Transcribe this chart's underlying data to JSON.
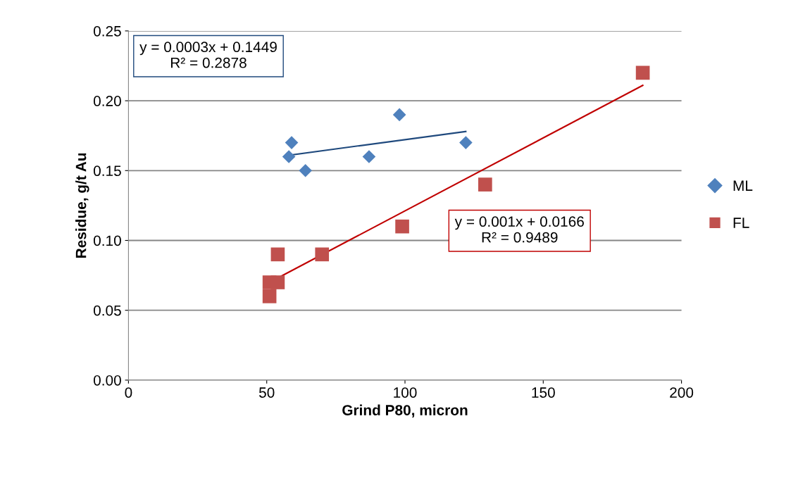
{
  "chart_data": {
    "type": "scatter",
    "xlabel": "Grind P80, micron",
    "ylabel": "Residue, g/t Au",
    "xlim": [
      0,
      200
    ],
    "xticks": [
      0,
      50,
      100,
      150,
      200
    ],
    "ylim": [
      0,
      0.25
    ],
    "yticks": [
      {
        "value": 0,
        "label": "0.00"
      },
      {
        "value": 0.05,
        "label": "0.05"
      },
      {
        "value": 0.1,
        "label": "0.10"
      },
      {
        "value": 0.15,
        "label": "0.15"
      },
      {
        "value": 0.2,
        "label": "0.20"
      },
      {
        "value": 0.25,
        "label": "0.25"
      }
    ],
    "grid": "y",
    "legend": "right",
    "series": [
      {
        "name": "ML",
        "marker": "diamond",
        "color": "#4f81bd",
        "x": [
          58,
          59,
          64,
          87,
          98,
          122
        ],
        "values": [
          0.16,
          0.17,
          0.15,
          0.16,
          0.19,
          0.17
        ]
      },
      {
        "name": "FL",
        "marker": "square",
        "color": "#c0504d",
        "x": [
          51,
          51,
          54,
          54,
          70,
          99,
          129,
          186
        ],
        "values": [
          0.07,
          0.06,
          0.07,
          0.09,
          0.09,
          0.11,
          0.14,
          0.22
        ]
      },
      {
        "type": "line",
        "color": "#1f497d",
        "x": [
          58,
          122
        ],
        "values": [
          0.161,
          0.178
        ]
      },
      {
        "type": "line",
        "color": "#c00000",
        "x": [
          51,
          186
        ],
        "values": [
          0.07,
          0.211
        ]
      }
    ],
    "annotations": [
      "y = 0.0003x + 0.1449\nR² = 0.2878",
      "y = 0.001x + 0.0166\nR² = 0.9489"
    ]
  }
}
